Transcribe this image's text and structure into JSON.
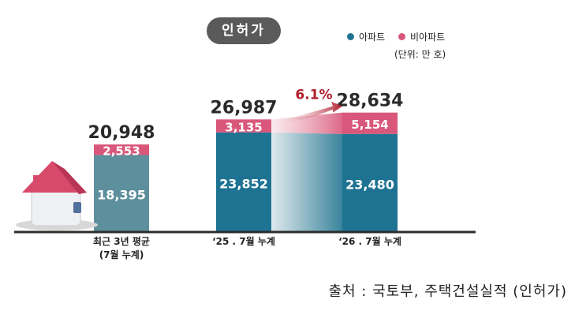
{
  "badge": "인허가",
  "legend": [
    {
      "label": "아파트",
      "color": "#1e7393"
    },
    {
      "label": "비아파트",
      "color": "#d9577a"
    }
  ],
  "unit": "(단위: 만 호)",
  "source": "출처 : 국토부, 주택건설실적 (인허가)",
  "growth_label": "6.1%",
  "chart_data": {
    "type": "bar",
    "stacked": true,
    "categories": [
      "최근 3년 평균\n(7월 누계)",
      "‘25 . 7월 누계",
      "‘26 . 7월 누계"
    ],
    "series": [
      {
        "name": "아파트",
        "values": [
          18395,
          23852,
          23480
        ],
        "labels": [
          "18,395",
          "23,852",
          "23,480"
        ]
      },
      {
        "name": "비아파트",
        "values": [
          2553,
          3135,
          5154
        ],
        "labels": [
          "2,553",
          "3,135",
          "5,154"
        ]
      }
    ],
    "totals": [
      20948,
      26987,
      28634
    ],
    "total_labels": [
      "20,948",
      "26,987",
      "28,634"
    ],
    "colors": {
      "apt_first": "#5d8f9d",
      "apt": "#1e7393",
      "nonapt": "#d9577a",
      "arrow": "#b01d2c"
    }
  }
}
